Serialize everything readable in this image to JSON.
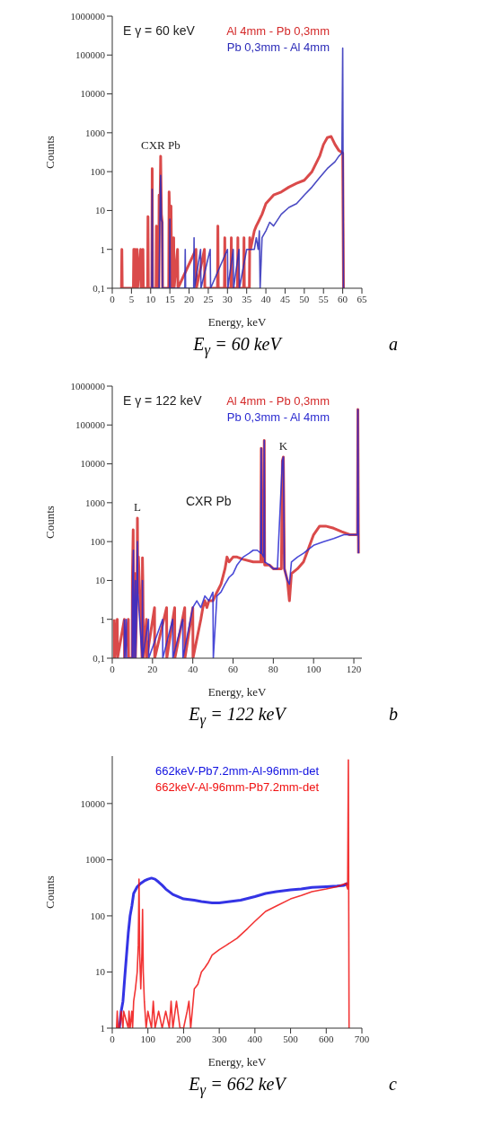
{
  "chart_data": [
    {
      "type": "line",
      "title": "E$_{γ}$ = 60 keV",
      "xlabel": "Energy, keV",
      "ylabel": "Counts",
      "log": true,
      "legend": "top right",
      "xlim": [
        0,
        65
      ],
      "xticks": [
        0,
        5,
        10,
        15,
        20,
        25,
        30,
        35,
        40,
        45,
        50,
        55,
        60,
        65
      ],
      "ylim": [
        0.1,
        1000000
      ],
      "yticks": [
        {
          "value": 0.1,
          "label": "0,1"
        },
        1,
        10,
        100,
        1000,
        10000,
        100000,
        1000000
      ],
      "annotations": [
        "a",
        "E γ = 60 keV",
        {
          "text": "CXR Pb",
          "x": 12.6,
          "y": 250
        }
      ],
      "series": [
        {
          "name": "Al 4mm - Pb 0,3mm",
          "color": "#d42a2a",
          "x": [
            2.4,
            2.5,
            2.6,
            5.5,
            5.6,
            5.7,
            5.8,
            6,
            6.1,
            6.5,
            6.6,
            7.4,
            7.5,
            8,
            8.1,
            9.2,
            9.3,
            9.4,
            10.3,
            10.4,
            10.5,
            11.4,
            11.5,
            11.6,
            12.1,
            12.2,
            12.4,
            12.6,
            12.8,
            13,
            13.1,
            14.7,
            14.8,
            15,
            15.3,
            15.5,
            15.9,
            16,
            16.1,
            17,
            17.1,
            21.8,
            21.9,
            24,
            24.1,
            27.4,
            27.5,
            27.6,
            29.2,
            29.3,
            29.4,
            30.9,
            31,
            31.1,
            32.6,
            32.7,
            32.8,
            34.2,
            34.3,
            34.4,
            35.7,
            35.8,
            36,
            37,
            37.5,
            38,
            39,
            40,
            42,
            44,
            46,
            48,
            50,
            52,
            54,
            55,
            56,
            57,
            58,
            59,
            60,
            60.2
          ],
          "values": [
            0.1,
            1,
            0.1,
            0.1,
            1,
            1,
            0.1,
            1,
            0.1,
            1,
            0.1,
            1,
            0.1,
            1,
            0.1,
            0.1,
            7,
            0.1,
            0.1,
            120,
            0.1,
            0.1,
            4,
            0.1,
            0.1,
            25,
            6,
            250,
            8,
            5,
            0.1,
            0.1,
            30,
            5,
            13,
            0.1,
            0.1,
            2,
            0.1,
            1,
            0.1,
            1,
            0.1,
            1,
            0.1,
            0.1,
            4,
            0.1,
            0.1,
            2,
            0.1,
            0.1,
            2,
            0.1,
            0.1,
            2,
            0.1,
            0.1,
            2,
            0.1,
            0.1,
            2,
            1,
            3,
            4,
            5,
            8,
            15,
            25,
            30,
            40,
            50,
            60,
            100,
            250,
            500,
            750,
            800,
            500,
            350,
            300,
            0.1
          ]
        },
        {
          "name": "Pb 0,3mm - Al 4mm",
          "color": "#2a2ab8",
          "x": [
            10.3,
            10.4,
            10.5,
            12.2,
            12.4,
            12.6,
            12.8,
            13,
            13.1,
            14.9,
            15,
            15.1,
            18.9,
            19,
            19.1,
            21.2,
            21.3,
            21.4,
            23,
            23.1,
            25.5,
            25.6,
            30,
            30.1,
            31.5,
            31.6,
            33,
            33.1,
            35,
            35.5,
            36,
            36.5,
            37,
            37.5,
            38,
            38.3,
            38.5,
            39,
            40,
            41,
            42,
            44,
            46,
            48,
            50,
            52,
            54,
            56,
            58,
            59,
            59.8,
            60,
            60.2
          ],
          "values": [
            0.1,
            35,
            0.1,
            0.1,
            6,
            80,
            6,
            5,
            0.1,
            0.1,
            6,
            0.1,
            0.1,
            1,
            0.1,
            0.1,
            2,
            0.1,
            1,
            0.1,
            1,
            0.1,
            1,
            0.1,
            1,
            0.1,
            1,
            0.1,
            1,
            1,
            1,
            1,
            1,
            2,
            1,
            3,
            0.1,
            2,
            3,
            5,
            4,
            8,
            12,
            15,
            25,
            40,
            70,
            120,
            180,
            250,
            300,
            150000,
            0.1
          ]
        }
      ]
    },
    {
      "type": "line",
      "title": "E$_{γ}$ = 122 keV",
      "xlabel": "Energy, keV",
      "ylabel": "Counts",
      "log": true,
      "legend": "top right",
      "xlim": [
        0,
        124
      ],
      "xticks": [
        0,
        20,
        40,
        60,
        80,
        100,
        120
      ],
      "ylim": [
        0.1,
        1000000
      ],
      "yticks": [
        {
          "value": 0.1,
          "label": "0,1"
        },
        1,
        10,
        100,
        1000,
        10000,
        100000,
        1000000
      ],
      "annotations": [
        "b",
        "E γ = 122 keV",
        "CXR Pb",
        {
          "text": "L",
          "x": 12.5,
          "y": 400
        },
        {
          "text": "K",
          "x": 85,
          "y": 15000
        }
      ],
      "series": [
        {
          "name": "Al 4mm - Pb 0,3mm",
          "color": "#d42a2a",
          "x": [
            1,
            1.1,
            2.5,
            2.6,
            6,
            6.1,
            8,
            8.1,
            9.9,
            10,
            10.4,
            10.6,
            10.8,
            11.4,
            11.5,
            12.3,
            12.5,
            12.7,
            13,
            14.8,
            15,
            15.2,
            15.5,
            17,
            17.1,
            21,
            21.1,
            27,
            27.1,
            31,
            31.1,
            36,
            36.1,
            40,
            40.1,
            44,
            45,
            46,
            47,
            48,
            50,
            52,
            54,
            56,
            57,
            58,
            60,
            62,
            65,
            70,
            73.8,
            74,
            74.2,
            75.3,
            75.5,
            75.7,
            78,
            80,
            84,
            84.5,
            85,
            85.5,
            87,
            88,
            89,
            92,
            95,
            100,
            103,
            106,
            110,
            114,
            118,
            121.8,
            122,
            122.3
          ],
          "values": [
            1,
            0.1,
            1,
            0.1,
            1,
            0.1,
            1,
            0.1,
            0.1,
            12,
            200,
            5,
            0.1,
            15,
            0.1,
            5,
            400,
            5,
            40,
            0.1,
            38,
            10,
            0.1,
            1,
            0.1,
            2,
            0.1,
            2,
            0.1,
            2,
            0.1,
            2,
            0.1,
            2,
            0.1,
            1,
            2,
            3,
            2,
            3,
            3,
            5,
            8,
            20,
            40,
            30,
            40,
            40,
            35,
            30,
            30,
            25000,
            30,
            30,
            40000,
            25,
            25,
            20,
            20,
            12000,
            15000,
            20,
            10,
            3,
            15,
            20,
            30,
            150,
            250,
            250,
            220,
            180,
            150,
            150,
            250000,
            50
          ]
        },
        {
          "name": "Pb 0,3mm - Al 4mm",
          "color": "#2a2ad0",
          "x": [
            6,
            6.1,
            7,
            7.1,
            9.9,
            10,
            10.5,
            10.7,
            11.5,
            11.6,
            12.3,
            12.5,
            12.7,
            14.9,
            15,
            15.1,
            18,
            18.1,
            25,
            25.1,
            30,
            30.1,
            35,
            35.1,
            40,
            42,
            44,
            46,
            48,
            50,
            50.2,
            52,
            54,
            56,
            58,
            60,
            62,
            65,
            68,
            70,
            72,
            73.8,
            74,
            74.2,
            75.3,
            75.5,
            75.7,
            78,
            80,
            82,
            84.5,
            85,
            85.5,
            87,
            88,
            89,
            92,
            95,
            100,
            105,
            110,
            115,
            120,
            121.8,
            122,
            122.3
          ],
          "values": [
            1,
            0.1,
            1,
            0.1,
            0.1,
            5,
            60,
            0.1,
            10,
            0.1,
            5,
            100,
            5,
            0.1,
            10,
            0.1,
            1,
            0.1,
            1,
            0.1,
            1,
            0.1,
            1,
            0.1,
            2,
            3,
            2,
            4,
            3,
            5,
            0.1,
            4,
            5,
            8,
            12,
            15,
            25,
            40,
            50,
            60,
            60,
            50,
            25000,
            50,
            40,
            40000,
            30,
            25,
            20,
            20,
            12000,
            15000,
            20,
            10,
            8,
            30,
            40,
            50,
            80,
            100,
            120,
            150,
            150,
            150,
            250000,
            50
          ]
        }
      ]
    },
    {
      "type": "line",
      "title": "E$_{γ}$ = 662 keV",
      "annotations": [
        "c"
      ],
      "xlabel": "Energy, keV",
      "ylabel": "Counts",
      "log": true,
      "legend": "top",
      "xlim": [
        0,
        700
      ],
      "xticks": [
        0,
        100,
        200,
        300,
        400,
        500,
        600,
        700
      ],
      "ylim": [
        1,
        70000
      ],
      "yticks": [
        1,
        10,
        100,
        1000,
        10000
      ],
      "series": [
        {
          "name": "662keV-Pb7.2mm-Al-96mm-det",
          "color": "#1010e0",
          "x": [
            20,
            25,
            30,
            35,
            40,
            45,
            50,
            55,
            60,
            70,
            80,
            90,
            100,
            110,
            120,
            130,
            140,
            150,
            170,
            200,
            230,
            250,
            280,
            300,
            330,
            360,
            400,
            430,
            460,
            500,
            530,
            560,
            600,
            630,
            650,
            660
          ],
          "values": [
            1,
            2,
            3,
            8,
            20,
            50,
            100,
            150,
            250,
            330,
            380,
            420,
            450,
            470,
            450,
            400,
            350,
            300,
            240,
            200,
            190,
            180,
            170,
            170,
            180,
            190,
            220,
            250,
            270,
            290,
            300,
            320,
            330,
            340,
            350,
            380
          ]
        },
        {
          "name": "662keV-Al-96mm-Pb7.2mm-det",
          "color": "#f01010",
          "x": [
            12,
            14,
            16,
            20,
            25,
            30,
            32,
            45,
            47,
            50,
            55,
            57,
            60,
            65,
            70,
            73,
            75,
            77,
            80,
            83,
            85,
            87,
            90,
            95,
            100,
            110,
            115,
            120,
            130,
            140,
            150,
            160,
            165,
            170,
            180,
            190,
            200,
            210,
            215,
            220,
            230,
            240,
            250,
            260,
            270,
            280,
            300,
            320,
            350,
            380,
            400,
            430,
            460,
            500,
            530,
            560,
            600,
            630,
            655,
            660,
            662,
            664
          ],
          "values": [
            1,
            2,
            1,
            1,
            2,
            1,
            2,
            1,
            2,
            1,
            2,
            1,
            3,
            5,
            10,
            30,
            450,
            20,
            5,
            20,
            130,
            10,
            3,
            1,
            2,
            1,
            3,
            1,
            2,
            1,
            2,
            1,
            3,
            1,
            3,
            1,
            1,
            2,
            3,
            1,
            5,
            6,
            10,
            12,
            15,
            20,
            25,
            30,
            40,
            60,
            80,
            120,
            150,
            200,
            230,
            270,
            300,
            330,
            380,
            300,
            60000,
            1
          ]
        }
      ]
    }
  ]
}
